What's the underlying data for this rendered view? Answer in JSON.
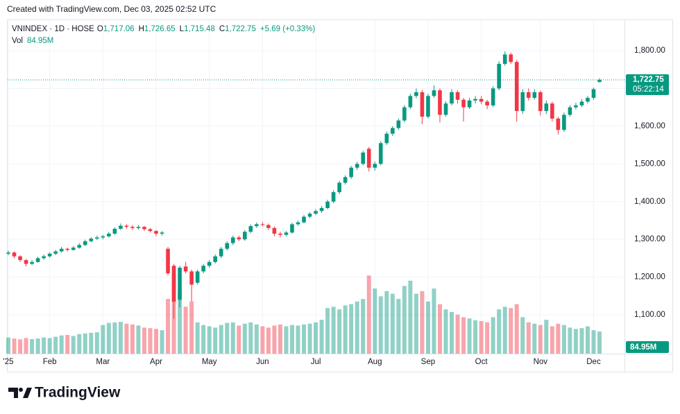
{
  "header": {
    "created": "Created with TradingView.com, Dec 03, 2025 02:52 UTC"
  },
  "chart_data": {
    "type": "candlestick",
    "legend": {
      "symbol": "VNINDEX · 1D · HOSE",
      "fields": [
        {
          "key": "O",
          "value": "1,717.06"
        },
        {
          "key": "H",
          "value": "1,726.65"
        },
        {
          "key": "L",
          "value": "1,715.48"
        },
        {
          "key": "C",
          "value": "1,722.75"
        }
      ],
      "change": "+5.69 (+0.33%)"
    },
    "categories": [
      "'25",
      null,
      null,
      null,
      null,
      null,
      null,
      "Feb",
      null,
      null,
      null,
      null,
      null,
      null,
      null,
      null,
      "Mar",
      null,
      null,
      null,
      null,
      null,
      null,
      null,
      null,
      "Apr",
      null,
      null,
      null,
      null,
      null,
      null,
      null,
      null,
      "May",
      null,
      null,
      null,
      null,
      null,
      null,
      null,
      null,
      "Jun",
      null,
      null,
      null,
      null,
      null,
      null,
      null,
      null,
      "Jul",
      null,
      null,
      null,
      null,
      null,
      null,
      null,
      null,
      null,
      "Aug",
      null,
      null,
      null,
      null,
      null,
      null,
      null,
      null,
      "Sep",
      null,
      null,
      null,
      null,
      null,
      null,
      null,
      null,
      "Oct",
      null,
      null,
      null,
      null,
      null,
      null,
      null,
      null,
      null,
      "Nov",
      null,
      null,
      null,
      null,
      null,
      null,
      null,
      null,
      "Dec",
      null
    ],
    "open": [
      1262,
      1265,
      1255,
      1245,
      1235,
      1240,
      1250,
      1255,
      1262,
      1268,
      1275,
      1272,
      1278,
      1285,
      1295,
      1302,
      1305,
      1308,
      1315,
      1328,
      1336,
      1333,
      1330,
      1333,
      1327,
      1322,
      1315,
      1275,
      1230,
      1140,
      1228,
      1215,
      1185,
      1215,
      1230,
      1240,
      1255,
      1275,
      1290,
      1305,
      1300,
      1320,
      1335,
      1340,
      1338,
      1330,
      1315,
      1312,
      1318,
      1340,
      1345,
      1360,
      1368,
      1375,
      1383,
      1400,
      1425,
      1450,
      1465,
      1490,
      1500,
      1540,
      1490,
      1500,
      1555,
      1580,
      1595,
      1615,
      1650,
      1680,
      1690,
      1625,
      1680,
      1695,
      1630,
      1660,
      1690,
      1670,
      1650,
      1668,
      1672,
      1665,
      1655,
      1700,
      1765,
      1790,
      1770,
      1640,
      1690,
      1675,
      1690,
      1640,
      1660,
      1620,
      1590,
      1630,
      1650,
      1655,
      1665,
      1675,
      1717.06
    ],
    "high": [
      1270,
      1268,
      1258,
      1248,
      1245,
      1254,
      1260,
      1266,
      1272,
      1280,
      1278,
      1282,
      1290,
      1299,
      1306,
      1310,
      1312,
      1320,
      1332,
      1342,
      1340,
      1338,
      1338,
      1336,
      1330,
      1325,
      1322,
      1280,
      1235,
      1230,
      1240,
      1220,
      1220,
      1235,
      1245,
      1260,
      1280,
      1295,
      1310,
      1310,
      1325,
      1340,
      1345,
      1346,
      1342,
      1334,
      1320,
      1322,
      1344,
      1350,
      1364,
      1372,
      1380,
      1388,
      1405,
      1430,
      1455,
      1470,
      1495,
      1506,
      1535,
      1545,
      1506,
      1560,
      1586,
      1600,
      1620,
      1656,
      1686,
      1700,
      1696,
      1686,
      1708,
      1700,
      1666,
      1698,
      1695,
      1675,
      1675,
      1680,
      1680,
      1670,
      1706,
      1772,
      1798,
      1795,
      1775,
      1698,
      1700,
      1698,
      1694,
      1668,
      1665,
      1625,
      1636,
      1656,
      1662,
      1672,
      1680,
      1702,
      1726.65
    ],
    "low": [
      1258,
      1250,
      1240,
      1228,
      1232,
      1238,
      1246,
      1252,
      1258,
      1265,
      1268,
      1270,
      1275,
      1282,
      1292,
      1298,
      1300,
      1305,
      1312,
      1325,
      1328,
      1325,
      1326,
      1322,
      1318,
      1308,
      1310,
      1205,
      1090,
      1120,
      1210,
      1135,
      1180,
      1210,
      1225,
      1236,
      1250,
      1270,
      1285,
      1295,
      1296,
      1316,
      1330,
      1334,
      1325,
      1308,
      1305,
      1308,
      1315,
      1336,
      1342,
      1356,
      1364,
      1370,
      1380,
      1396,
      1420,
      1445,
      1460,
      1484,
      1496,
      1480,
      1482,
      1496,
      1550,
      1574,
      1590,
      1610,
      1645,
      1674,
      1605,
      1620,
      1675,
      1610,
      1625,
      1655,
      1660,
      1612,
      1645,
      1660,
      1658,
      1645,
      1650,
      1695,
      1760,
      1765,
      1612,
      1632,
      1668,
      1670,
      1628,
      1632,
      1612,
      1578,
      1585,
      1625,
      1644,
      1650,
      1660,
      1670,
      1715.48
    ],
    "close": [
      1265,
      1255,
      1245,
      1235,
      1240,
      1250,
      1255,
      1262,
      1268,
      1275,
      1272,
      1278,
      1285,
      1295,
      1302,
      1305,
      1308,
      1315,
      1328,
      1336,
      1333,
      1330,
      1333,
      1327,
      1322,
      1315,
      1318,
      1210,
      1135,
      1225,
      1215,
      1180,
      1215,
      1230,
      1240,
      1255,
      1275,
      1290,
      1305,
      1300,
      1320,
      1335,
      1340,
      1338,
      1330,
      1315,
      1312,
      1318,
      1340,
      1345,
      1360,
      1368,
      1375,
      1383,
      1400,
      1425,
      1450,
      1465,
      1490,
      1500,
      1530,
      1490,
      1500,
      1555,
      1580,
      1595,
      1615,
      1650,
      1680,
      1690,
      1625,
      1680,
      1695,
      1630,
      1660,
      1690,
      1670,
      1650,
      1668,
      1672,
      1665,
      1655,
      1700,
      1765,
      1790,
      1770,
      1640,
      1690,
      1675,
      1690,
      1640,
      1660,
      1620,
      1590,
      1630,
      1650,
      1655,
      1665,
      1675,
      1698,
      1722.75
    ],
    "volume": {
      "name": "Vol",
      "label": "84.95M",
      "values": [
        62,
        58,
        55,
        60,
        56,
        58,
        62,
        60,
        65,
        70,
        72,
        68,
        75,
        78,
        80,
        82,
        110,
        118,
        120,
        122,
        115,
        112,
        108,
        100,
        98,
        95,
        90,
        210,
        305,
        240,
        180,
        200,
        120,
        110,
        105,
        100,
        110,
        118,
        120,
        108,
        115,
        120,
        112,
        105,
        100,
        108,
        112,
        105,
        110,
        108,
        112,
        115,
        120,
        130,
        175,
        180,
        170,
        185,
        190,
        200,
        210,
        300,
        250,
        220,
        240,
        230,
        210,
        260,
        280,
        230,
        240,
        200,
        250,
        190,
        170,
        160,
        150,
        140,
        135,
        128,
        125,
        120,
        140,
        170,
        180,
        175,
        190,
        140,
        120,
        115,
        110,
        130,
        105,
        115,
        110,
        100,
        95,
        98,
        105,
        90,
        84.95
      ]
    },
    "vol_ylim": [
      0,
      1280
    ],
    "up_color": "#089981",
    "down_color": "#f23645",
    "ylim": [
      997,
      1881
    ],
    "yticks": [
      {
        "value": 1100,
        "label": "1,100.00"
      },
      {
        "value": 1200,
        "label": "1,200.00"
      },
      {
        "value": 1300,
        "label": "1,300.00"
      },
      {
        "value": 1400,
        "label": "1,400.00"
      },
      {
        "value": 1500,
        "label": "1,500.00"
      },
      {
        "value": 1600,
        "label": "1,600.00"
      },
      {
        "value": 1700,
        "label": "1,700.00"
      },
      {
        "value": 1800,
        "label": "1,800.00"
      }
    ],
    "last_price_label": "1,722.75",
    "countdown": "05:22:14",
    "grid": true
  },
  "footer": {
    "brand": "TradingView"
  }
}
